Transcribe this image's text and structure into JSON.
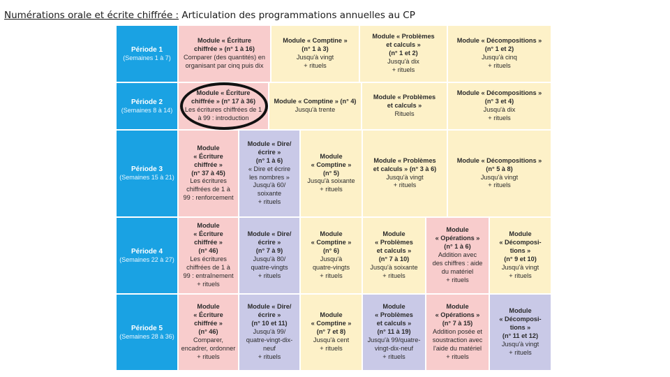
{
  "header": {
    "title_underlined": "Numérations orale et écrite chiffrée :",
    "title_rest": " Articulation des programmations annuelles au CP"
  },
  "rows": [
    {
      "period": "Période 1",
      "weeks": "(Semaines 1 à 7)",
      "cells": [
        {
          "color": "pink",
          "lines": [
            "Module « Écriture",
            "chiffrée » (n° 1 à 16)",
            "Comparer (des quantités) en",
            "organisant par cinq puis dix"
          ],
          "bold": 2
        },
        {
          "color": "yellow",
          "lines": [
            "Module « Comptine »",
            "(n° 1 à 3)",
            "Jusqu'à vingt",
            "+ rituels"
          ],
          "bold": 2
        },
        {
          "color": "yellow",
          "lines": [
            "Module « Problèmes",
            "et calculs »",
            "(n° 1 et 2)",
            "Jusqu'à dix",
            "+ rituels"
          ],
          "bold": 3
        },
        {
          "color": "yellow",
          "lines": [
            "Module « Décompositions »",
            "(n° 1 et 2)",
            "Jusqu'à cinq",
            "+ rituels"
          ],
          "bold": 2
        }
      ]
    },
    {
      "period": "Période 2",
      "weeks": "(Semaines 8 à 14)",
      "cells": [
        {
          "color": "pink",
          "lines": [
            "Module « Écriture",
            "chiffrée » (n° 17 à 36)",
            "Les écritures chiffrées de 1",
            "à 99 : introduction"
          ],
          "bold": 2
        },
        {
          "color": "yellow",
          "lines": [
            "Module « Comptine » (n° 4)",
            "Jusqu'à trente"
          ],
          "bold": 1
        },
        {
          "color": "yellow",
          "lines": [
            "Module « Problèmes",
            "et calculs »",
            "Rituels"
          ],
          "bold": 2
        },
        {
          "color": "yellow",
          "lines": [
            "Module « Décompositions »",
            "(n° 3 et 4)",
            "Jusqu'à dix",
            "+ rituels"
          ],
          "bold": 2
        }
      ]
    },
    {
      "period": "Période 3",
      "weeks": "(Semaines 15 à 21)",
      "cells": [
        {
          "color": "pink",
          "lines": [
            "Module",
            "« Écriture",
            "chiffrée »",
            "(n° 37 à 45)",
            "Les écritures",
            "chiffrées de 1 à",
            "99 : renforcement"
          ],
          "bold": 4
        },
        {
          "color": "lav",
          "lines": [
            "Module « Dire/",
            "écrire »",
            "(n° 1 à 6)",
            "« Dire et écrire",
            "les nombres »",
            "Jusqu'à 60/",
            "soixante",
            "+ rituels"
          ],
          "bold": 3
        },
        {
          "color": "yellow",
          "lines": [
            "Module",
            "« Comptine »",
            "(n° 5)",
            "Jusqu'à soixante",
            "+ rituels"
          ],
          "bold": 3
        },
        {
          "color": "yellow",
          "lines": [
            "Module « Problèmes",
            "et calculs » (n° 3 à 6)",
            "Jusqu'à vingt",
            "+ rituels"
          ],
          "bold": 2
        },
        {
          "color": "yellow",
          "lines": [
            "Module « Décompositions »",
            "(n° 5 à 8)",
            "Jusqu'à vingt",
            "+ rituels"
          ],
          "bold": 2
        }
      ]
    },
    {
      "period": "Période 4",
      "weeks": "(Semaines 22 à 27)",
      "cells": [
        {
          "color": "pink",
          "lines": [
            "Module",
            "« Écriture",
            "chiffrée »",
            "(n° 46)",
            "Les écritures",
            "chiffrées de 1 à",
            "99 : entraînement",
            "+ rituels"
          ],
          "bold": 4
        },
        {
          "color": "lav",
          "lines": [
            "Module « Dire/",
            "écrire »",
            "(n° 7 à 9)",
            "Jusqu'à 80/",
            "quatre-vingts",
            "+ rituels"
          ],
          "bold": 3
        },
        {
          "color": "yellow",
          "lines": [
            "Module",
            "« Comptine »",
            "(n° 6)",
            "Jusqu'à",
            "quatre-vingts",
            "+ rituels"
          ],
          "bold": 3
        },
        {
          "color": "yellow",
          "lines": [
            "Module",
            "« Problèmes",
            "et calculs »",
            "(n° 7 à 10)",
            "Jusqu'à soixante",
            "+ rituels"
          ],
          "bold": 4
        },
        {
          "color": "pink",
          "lines": [
            "Module",
            "« Opérations »",
            "(n° 1 à 6)",
            "Addition avec",
            "des chiffres : aide",
            "du matériel",
            "+ rituels"
          ],
          "bold": 3
        },
        {
          "color": "yellow",
          "lines": [
            "Module",
            "« Décomposi-",
            "tions »",
            "(n° 9 et 10)",
            "Jusqu'à vingt",
            "+ rituels"
          ],
          "bold": 4
        }
      ]
    },
    {
      "period": "Période 5",
      "weeks": "(Semaines 28 à 36)",
      "cells": [
        {
          "color": "pink",
          "lines": [
            "Module",
            "« Écriture",
            "chiffrée »",
            "(n° 46)",
            "Comparer,",
            "encadrer, ordonner",
            "+ rituels"
          ],
          "bold": 4
        },
        {
          "color": "lav",
          "lines": [
            "Module « Dire/",
            "écrire »",
            "(n° 10 et 11)",
            "Jusqu'à 99/",
            "quatre-vingt-dix-",
            "neuf",
            "+ rituels"
          ],
          "bold": 3
        },
        {
          "color": "yellow",
          "lines": [
            "Module",
            "« Comptine »",
            "(n° 7 et 8)",
            "Jusqu'à cent",
            "+ rituels"
          ],
          "bold": 3
        },
        {
          "color": "lav",
          "lines": [
            "Module",
            "« Problèmes",
            "et calculs »",
            "(n° 11 à 19)",
            "Jusqu'à 99/quatre-",
            "vingt-dix-neuf",
            "+ rituels"
          ],
          "bold": 4
        },
        {
          "color": "pink",
          "lines": [
            "Module",
            "« Opérations »",
            "(n° 7 à 15)",
            "Addition posée et",
            "soustraction avec",
            "l'aide du matériel",
            "+ rituels"
          ],
          "bold": 3
        },
        {
          "color": "lav",
          "lines": [
            "Module",
            "« Décomposi-",
            "tions »",
            "(n° 11 et 12)",
            "Jusqu'à vingt",
            "+ rituels"
          ],
          "bold": 4
        }
      ]
    }
  ],
  "colors": {
    "period": "#1aa2e3",
    "pink": "#f8cccc",
    "yellow": "#fdf1c8",
    "lav": "#c9c9e7",
    "circle": "#111111"
  }
}
